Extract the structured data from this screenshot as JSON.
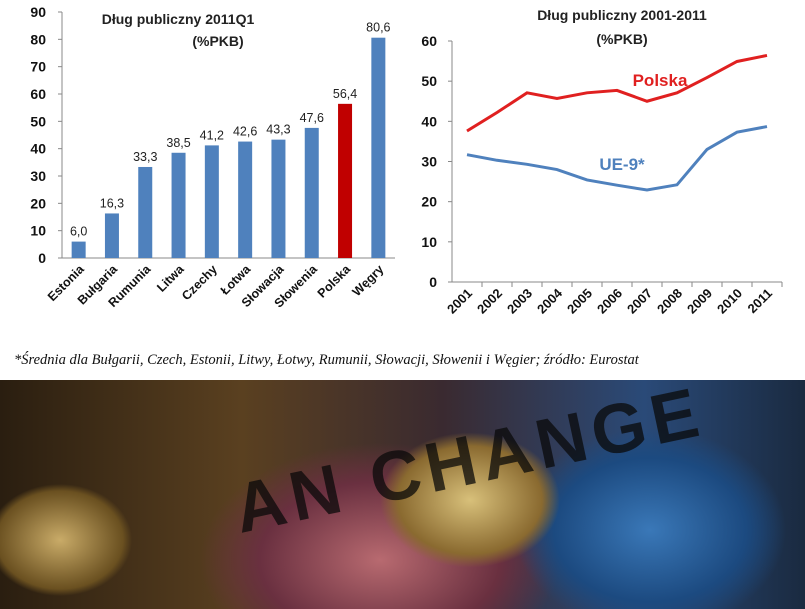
{
  "chart_data": [
    {
      "type": "bar",
      "title": "Dług publiczny 2011Q1",
      "subtitle": "(%PKB)",
      "categories": [
        "Estonia",
        "Bułgaria",
        "Rumunia",
        "Litwa",
        "Czechy",
        "Łotwa",
        "Słowacja",
        "Słowenia",
        "Polska",
        "Węgry"
      ],
      "values": [
        6.0,
        16.3,
        33.3,
        38.5,
        41.2,
        42.6,
        43.3,
        47.6,
        56.4,
        80.6
      ],
      "value_labels": [
        "6,0",
        "16,3",
        "33,3",
        "38,5",
        "41,2",
        "42,6",
        "43,3",
        "47,6",
        "56,4",
        "80,6"
      ],
      "ylim": [
        0,
        90
      ],
      "yticks": [
        0,
        10,
        20,
        30,
        40,
        50,
        60,
        70,
        80,
        90
      ],
      "colors": {
        "default": "#4f81bd",
        "highlight": "#c00000"
      },
      "highlight": "Polska",
      "grid": false
    },
    {
      "type": "line",
      "title": "Dług publiczny 2001-2011",
      "subtitle": "(%PKB)",
      "x": [
        "2001",
        "2002",
        "2003",
        "2004",
        "2005",
        "2006",
        "2007",
        "2008",
        "2009",
        "2010",
        "2011"
      ],
      "ylim": [
        0,
        60
      ],
      "yticks": [
        0,
        10,
        20,
        30,
        40,
        50,
        60
      ],
      "grid": false,
      "series": [
        {
          "name": "Polska",
          "color": "#e02020",
          "values": [
            37.6,
            42.2,
            47.1,
            45.7,
            47.1,
            47.7,
            45.0,
            47.1,
            50.9,
            54.9,
            56.4
          ]
        },
        {
          "name": "UE-9*",
          "color": "#4f81bd",
          "values": [
            31.7,
            30.3,
            29.3,
            28.0,
            25.4,
            24.1,
            22.9,
            24.2,
            33.0,
            37.3,
            38.7
          ]
        }
      ]
    }
  ],
  "footnote": "*Średnia dla Bułgarii, Czech, Estonii, Litwy, Łotwy, Rumunii, Słowacji, Słowenii i Węgier; źródło: Eurostat",
  "photo": {
    "text": "AN CHANGE"
  }
}
